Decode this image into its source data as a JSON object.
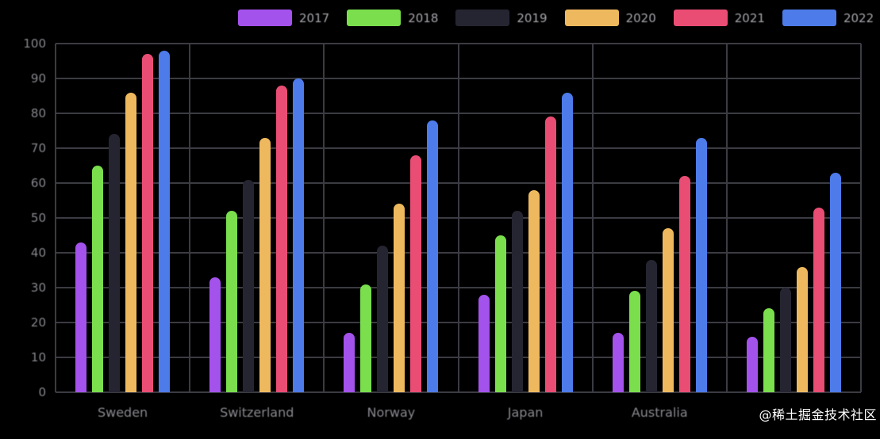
{
  "chart_data": {
    "type": "bar",
    "title": "",
    "categories": [
      "Sweden",
      "Switzerland",
      "Norway",
      "Japan",
      "Australia",
      ""
    ],
    "series": [
      {
        "name": "2017",
        "color": "#a452ec",
        "values": [
          43,
          33,
          17,
          28,
          17,
          16
        ]
      },
      {
        "name": "2018",
        "color": "#7ade4d",
        "values": [
          65,
          52,
          31,
          45,
          29,
          24
        ]
      },
      {
        "name": "2019",
        "color": "#252532",
        "values": [
          74,
          61,
          42,
          52,
          38,
          30
        ]
      },
      {
        "name": "2020",
        "color": "#eeb95e",
        "values": [
          86,
          73,
          54,
          58,
          47,
          36
        ]
      },
      {
        "name": "2021",
        "color": "#ea4d74",
        "values": [
          97,
          88,
          68,
          79,
          62,
          53
        ]
      },
      {
        "name": "2022",
        "color": "#4d7bea",
        "values": [
          98,
          90,
          78,
          86,
          73,
          63
        ]
      }
    ],
    "ylim": [
      0,
      100
    ],
    "y_ticks": [
      100,
      90,
      80,
      70,
      60,
      50,
      40,
      30,
      20,
      10,
      0
    ],
    "grid": true,
    "legend_position": "top"
  },
  "watermark": "@稀土掘金技术社区",
  "colors": {
    "background": "#000000",
    "grid": "#3b3b43",
    "tick_label": "#97979f",
    "legend_label": "#b5b5bc",
    "watermark": "#ffffff"
  }
}
